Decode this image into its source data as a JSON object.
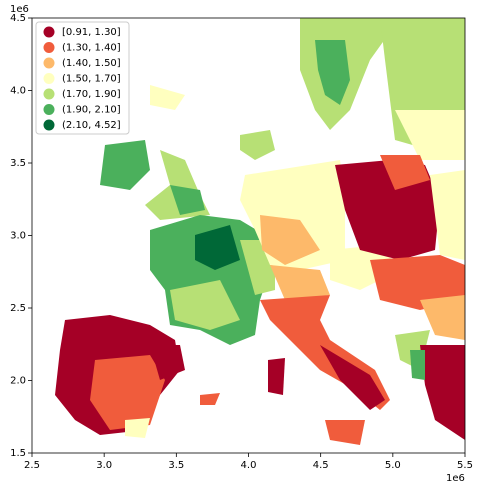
{
  "chart_data": {
    "type": "choropleth",
    "xlim": [
      2.5,
      5.5
    ],
    "ylim": [
      1.5,
      4.5
    ],
    "xticks": [
      2.5,
      {
        "value": 3,
        "label": "3.0"
      },
      3.5,
      {
        "value": 4,
        "label": "4.0"
      },
      4.5,
      {
        "value": 5,
        "label": "5.0"
      },
      5.5
    ],
    "yticks": [
      1.5,
      {
        "value": 2,
        "label": "2.0"
      },
      2.5,
      {
        "value": 3,
        "label": "3.0"
      },
      3.5,
      {
        "value": 4,
        "label": "4.0"
      },
      4.5
    ],
    "x_offset_label": "1e6",
    "y_offset_label": "1e6",
    "legend": {
      "loc": "upper left",
      "items": [
        {
          "label": "[0.91, 1.30]",
          "color": "#a50026"
        },
        {
          "label": "(1.30, 1.40]",
          "color": "#f05c3c"
        },
        {
          "label": "(1.40, 1.50]",
          "color": "#fdb96a"
        },
        {
          "label": "(1.50, 1.70]",
          "color": "#ffffbf"
        },
        {
          "label": "(1.70, 1.90]",
          "color": "#b7e075"
        },
        {
          "label": "(1.90, 2.10]",
          "color": "#4bb05c"
        },
        {
          "label": "(2.10, 4.52]",
          "color": "#006837"
        }
      ]
    }
  }
}
